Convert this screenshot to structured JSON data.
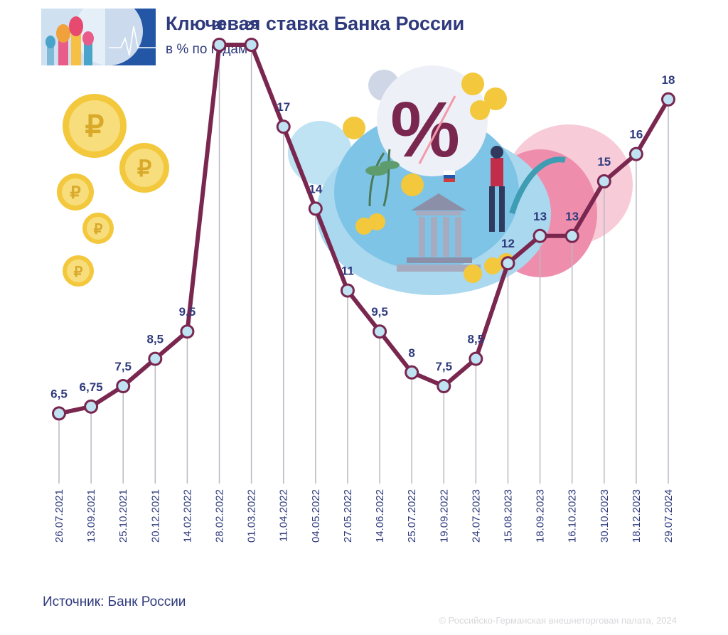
{
  "header": {
    "title": "Ключевая ставка Банка России",
    "subtitle": "в % по годам"
  },
  "footer": {
    "source": "Источник: Банк России",
    "copyright": "© Российско-Германская внешнеторговая палата, 2024"
  },
  "colors": {
    "line": "#7a2750",
    "marker_fill": "#bfe3f3",
    "label": "#2f3a7d",
    "gridline": "#b9b9c4"
  },
  "chart_data": {
    "type": "line",
    "title": "Ключевая ставка Банка России",
    "subtitle": "в % по годам",
    "xlabel": "",
    "ylabel": "",
    "grid": false,
    "legend": "none",
    "categories": [
      "26.07.2021",
      "13.09.2021",
      "25.10.2021",
      "20.12.2021",
      "14.02.2022",
      "28.02.2022",
      "01.03.2022",
      "11.04.2022",
      "04.05.2022",
      "27.05.2022",
      "14.06.2022",
      "25.07.2022",
      "19.09.2022",
      "24.07.2023",
      "15.08.2023",
      "18.09.2023",
      "16.10.2023",
      "30.10.2023",
      "18.12.2023",
      "29.07.2024"
    ],
    "values": [
      6.5,
      6.75,
      7.5,
      8.5,
      9.5,
      20,
      20,
      17,
      14,
      11,
      9.5,
      8,
      7.5,
      8.5,
      12,
      13,
      13,
      15,
      16,
      18
    ],
    "value_labels": [
      "6,5",
      "6,75",
      "7,5",
      "8,5",
      "9,5",
      "20",
      "20",
      "17",
      "14",
      "11",
      "9,5",
      "8",
      "7,5",
      "8,5",
      "12",
      "13",
      "13",
      "15",
      "16",
      "18"
    ]
  }
}
